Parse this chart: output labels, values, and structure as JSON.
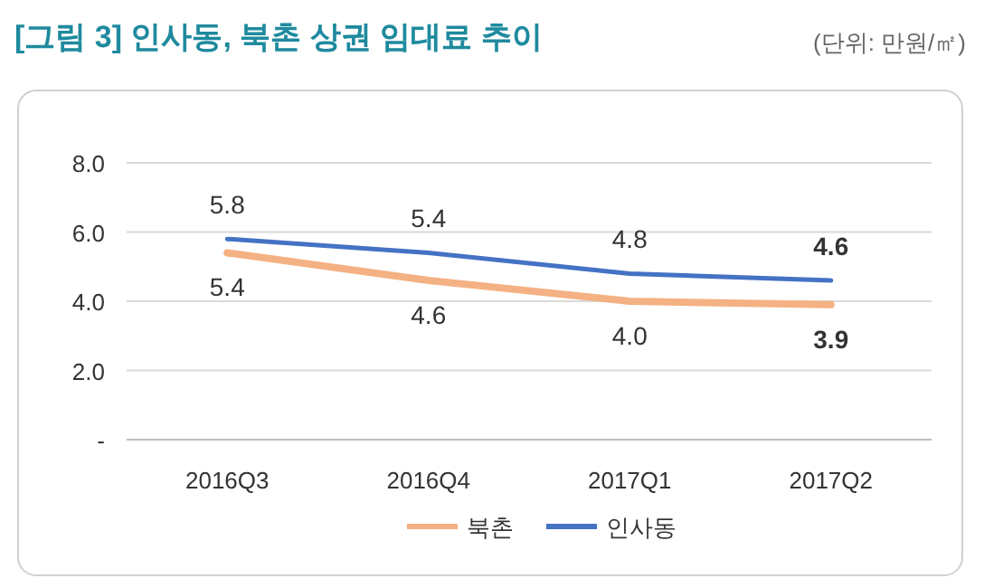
{
  "chart_data": {
    "type": "line",
    "title": "[그림 3] 인사동, 북촌 상권 임대료 추이",
    "annotations": [
      "(단위: 만원/㎡)"
    ],
    "categories": [
      "2016Q3",
      "2016Q4",
      "2017Q1",
      "2017Q2"
    ],
    "series": [
      {
        "name": "북촌",
        "color": "#f4b183",
        "values": [
          5.4,
          4.6,
          4.0,
          3.9
        ],
        "value_labels": [
          "5.4",
          "4.6",
          "4.0",
          "3.9"
        ]
      },
      {
        "name": "인사동",
        "color": "#4472c4",
        "values": [
          5.8,
          5.4,
          4.8,
          4.6
        ],
        "value_labels": [
          "5.8",
          "5.4",
          "4.8",
          "4.6"
        ]
      }
    ],
    "ylim": [
      0,
      8
    ],
    "yticks": [
      {
        "value": 0,
        "label": "-"
      },
      {
        "value": 2,
        "label": "2.0"
      },
      {
        "value": 4,
        "label": "4.0"
      },
      {
        "value": 6,
        "label": "6.0"
      },
      {
        "value": 8,
        "label": "8.0"
      }
    ],
    "grid": "y",
    "legend": "bottom",
    "marker": "none",
    "line_style": "solid"
  }
}
